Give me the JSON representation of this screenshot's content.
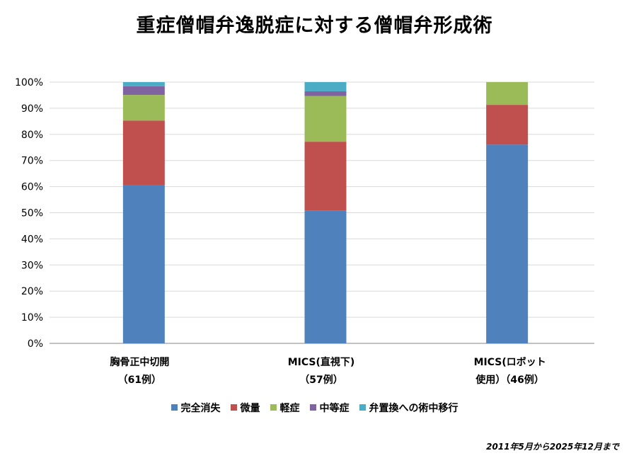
{
  "title": "重症僧帽弁逸脱症に対する僧帽弁形成術",
  "footnote": "2011年5月から2025年12月まで",
  "chart_data": {
    "type": "bar",
    "stacked": true,
    "percent": true,
    "title": "重症僧帽弁逸脱症に対する僧帽弁形成術",
    "xlabel": "",
    "ylabel": "",
    "ylim": [
      0,
      100
    ],
    "yticks": [
      "0%",
      "10%",
      "20%",
      "30%",
      "40%",
      "50%",
      "60%",
      "70%",
      "80%",
      "90%",
      "100%"
    ],
    "grid": true,
    "legend_position": "bottom",
    "categories": [
      [
        "胸骨正中切開",
        "（61例）"
      ],
      [
        "MICS(直視下)",
        "（57例）"
      ],
      [
        "MICS(ロボット",
        "使用）（46例）"
      ]
    ],
    "series": [
      {
        "name": "完全消失",
        "color": "#4f81bd",
        "values": [
          60.7,
          50.9,
          76.1
        ]
      },
      {
        "name": "微量",
        "color": "#c0504d",
        "values": [
          24.6,
          26.3,
          15.2
        ]
      },
      {
        "name": "軽症",
        "color": "#9bbb59",
        "values": [
          9.8,
          17.5,
          8.7
        ]
      },
      {
        "name": "中等症",
        "color": "#8064a2",
        "values": [
          3.3,
          1.8,
          0
        ]
      },
      {
        "name": "弁置換への術中移行",
        "color": "#4bacc6",
        "values": [
          1.6,
          3.5,
          0
        ]
      }
    ]
  }
}
